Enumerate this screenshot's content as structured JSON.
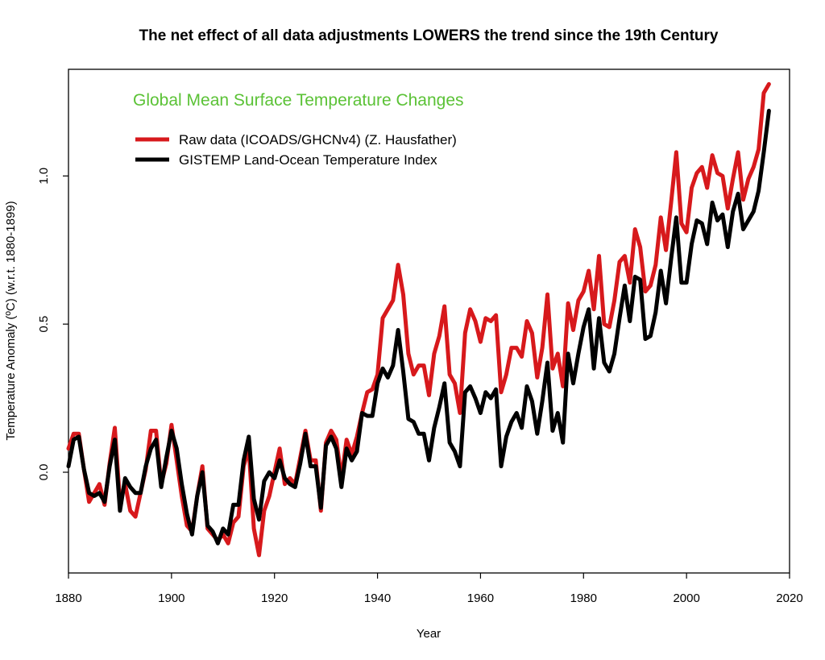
{
  "colors": {
    "raw": "#d7191c",
    "gistemp": "#000000",
    "inner_title": "#5bc236",
    "frame": "#000000"
  },
  "chart_data": {
    "type": "line",
    "title": "The net effect of all data adjustments LOWERS the trend since the 19th Century",
    "inner_title": "Global Mean Surface Temperature Changes",
    "xlabel": "Year",
    "ylabel": "Temperature Anomaly (ºC) (w.r.t. 1880-1899)",
    "xlim": [
      1880,
      2020
    ],
    "ylim": [
      -0.34,
      1.36
    ],
    "x_ticks": [
      1880,
      1900,
      1920,
      1940,
      1960,
      1980,
      2000,
      2020
    ],
    "y_ticks": [
      0.0,
      0.5,
      1.0
    ],
    "y_tick_labels": [
      "0.0",
      "0.5",
      "1.0"
    ],
    "grid": false,
    "legend_position": "top-left",
    "x": [
      1880,
      1881,
      1882,
      1883,
      1884,
      1885,
      1886,
      1887,
      1888,
      1889,
      1890,
      1891,
      1892,
      1893,
      1894,
      1895,
      1896,
      1897,
      1898,
      1899,
      1900,
      1901,
      1902,
      1903,
      1904,
      1905,
      1906,
      1907,
      1908,
      1909,
      1910,
      1911,
      1912,
      1913,
      1914,
      1915,
      1916,
      1917,
      1918,
      1919,
      1920,
      1921,
      1922,
      1923,
      1924,
      1925,
      1926,
      1927,
      1928,
      1929,
      1930,
      1931,
      1932,
      1933,
      1934,
      1935,
      1936,
      1937,
      1938,
      1939,
      1940,
      1941,
      1942,
      1943,
      1944,
      1945,
      1946,
      1947,
      1948,
      1949,
      1950,
      1951,
      1952,
      1953,
      1954,
      1955,
      1956,
      1957,
      1958,
      1959,
      1960,
      1961,
      1962,
      1963,
      1964,
      1965,
      1966,
      1967,
      1968,
      1969,
      1970,
      1971,
      1972,
      1973,
      1974,
      1975,
      1976,
      1977,
      1978,
      1979,
      1980,
      1981,
      1982,
      1983,
      1984,
      1985,
      1986,
      1987,
      1988,
      1989,
      1990,
      1991,
      1992,
      1993,
      1994,
      1995,
      1996,
      1997,
      1998,
      1999,
      2000,
      2001,
      2002,
      2003,
      2004,
      2005,
      2006,
      2007,
      2008,
      2009,
      2010,
      2011,
      2012,
      2013,
      2014,
      2015,
      2016
    ],
    "series": [
      {
        "name": "Raw data (ICOADS/GHCNv4) (Z. Hausfather)",
        "color_key": "raw",
        "values": [
          0.08,
          0.13,
          0.13,
          0.01,
          -0.1,
          -0.07,
          -0.04,
          -0.11,
          0.03,
          0.15,
          -0.1,
          -0.04,
          -0.13,
          -0.15,
          -0.07,
          0.01,
          0.14,
          0.14,
          -0.04,
          0.03,
          0.16,
          0.04,
          -0.08,
          -0.18,
          -0.2,
          -0.08,
          0.02,
          -0.19,
          -0.21,
          -0.23,
          -0.21,
          -0.24,
          -0.17,
          -0.15,
          0.02,
          0.08,
          -0.19,
          -0.28,
          -0.13,
          -0.08,
          0.0,
          0.08,
          -0.04,
          -0.02,
          -0.04,
          0.05,
          0.14,
          0.04,
          0.04,
          -0.13,
          0.1,
          0.14,
          0.11,
          -0.02,
          0.11,
          0.06,
          0.12,
          0.2,
          0.27,
          0.28,
          0.33,
          0.52,
          0.55,
          0.58,
          0.7,
          0.6,
          0.4,
          0.33,
          0.36,
          0.36,
          0.26,
          0.4,
          0.46,
          0.56,
          0.33,
          0.3,
          0.2,
          0.47,
          0.55,
          0.51,
          0.44,
          0.52,
          0.51,
          0.53,
          0.27,
          0.33,
          0.42,
          0.42,
          0.39,
          0.51,
          0.47,
          0.32,
          0.42,
          0.6,
          0.35,
          0.4,
          0.29,
          0.57,
          0.48,
          0.58,
          0.61,
          0.68,
          0.55,
          0.73,
          0.5,
          0.49,
          0.58,
          0.71,
          0.73,
          0.64,
          0.82,
          0.76,
          0.61,
          0.63,
          0.7,
          0.86,
          0.75,
          0.91,
          1.08,
          0.84,
          0.81,
          0.96,
          1.01,
          1.03,
          0.96,
          1.07,
          1.01,
          1.0,
          0.89,
          0.99,
          1.08,
          0.92,
          0.99,
          1.03,
          1.09,
          1.28,
          1.31
        ]
      },
      {
        "name": "GISTEMP Land-Ocean Temperature Index",
        "color_key": "gistemp",
        "values": [
          0.02,
          0.11,
          0.12,
          0.01,
          -0.07,
          -0.08,
          -0.07,
          -0.1,
          0.02,
          0.11,
          -0.13,
          -0.02,
          -0.05,
          -0.07,
          -0.07,
          0.02,
          0.08,
          0.11,
          -0.05,
          0.05,
          0.14,
          0.08,
          -0.04,
          -0.14,
          -0.21,
          -0.08,
          0.0,
          -0.18,
          -0.2,
          -0.24,
          -0.19,
          -0.21,
          -0.11,
          -0.11,
          0.04,
          0.12,
          -0.09,
          -0.16,
          -0.03,
          0.0,
          -0.02,
          0.04,
          -0.02,
          -0.04,
          -0.05,
          0.03,
          0.13,
          0.02,
          0.02,
          -0.12,
          0.09,
          0.12,
          0.08,
          -0.05,
          0.08,
          0.04,
          0.07,
          0.2,
          0.19,
          0.19,
          0.3,
          0.35,
          0.32,
          0.36,
          0.48,
          0.34,
          0.18,
          0.17,
          0.13,
          0.13,
          0.04,
          0.15,
          0.22,
          0.3,
          0.1,
          0.07,
          0.02,
          0.27,
          0.29,
          0.25,
          0.2,
          0.27,
          0.25,
          0.28,
          0.02,
          0.12,
          0.17,
          0.2,
          0.15,
          0.29,
          0.24,
          0.13,
          0.24,
          0.37,
          0.14,
          0.2,
          0.1,
          0.4,
          0.3,
          0.4,
          0.49,
          0.55,
          0.35,
          0.52,
          0.37,
          0.34,
          0.4,
          0.52,
          0.63,
          0.51,
          0.66,
          0.65,
          0.45,
          0.46,
          0.54,
          0.68,
          0.57,
          0.72,
          0.86,
          0.64,
          0.64,
          0.77,
          0.85,
          0.84,
          0.77,
          0.91,
          0.85,
          0.87,
          0.76,
          0.88,
          0.94,
          0.82,
          0.85,
          0.88,
          0.95,
          1.08,
          1.22
        ]
      }
    ]
  }
}
